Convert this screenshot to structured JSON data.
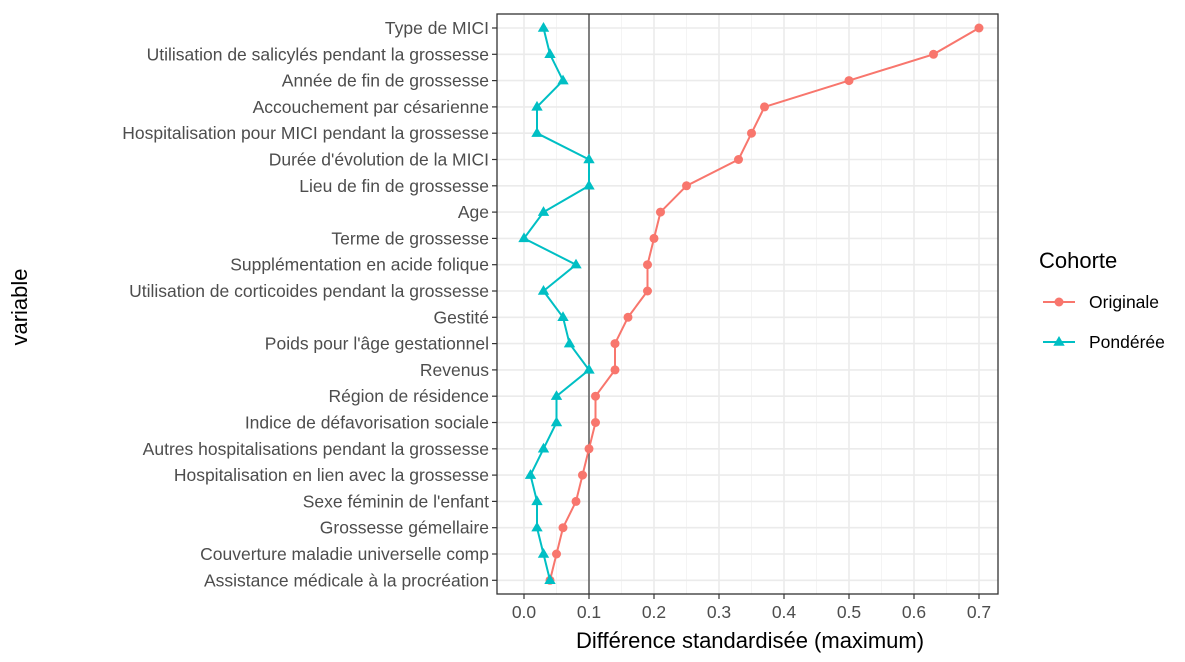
{
  "chart_data": {
    "type": "line",
    "xlabel": "Différence standardisée (maximum)",
    "ylabel": "variable",
    "xlim": [
      -0.04,
      0.73
    ],
    "xticks": [
      0.0,
      0.1,
      0.2,
      0.3,
      0.4,
      0.5,
      0.6,
      0.7
    ],
    "xtick_labels": [
      "0.0",
      "0.1",
      "0.2",
      "0.3",
      "0.4",
      "0.5",
      "0.6",
      "0.7"
    ],
    "reference_line_x": 0.1,
    "grid": true,
    "legend": {
      "title": "Cohorte",
      "position": "right"
    },
    "categories": [
      "Type de MICI",
      "Utilisation de salicylés pendant la grossesse",
      "Année de fin de grossesse",
      "Accouchement par césarienne",
      "Hospitalisation pour MICI pendant la grossesse",
      "Durée d'évolution de la MICI",
      "Lieu de fin de grossesse",
      "Age",
      "Terme de grossesse",
      "Supplémentation en acide folique",
      "Utilisation de corticoides pendant la grossesse",
      "Gestité",
      "Poids pour l'âge gestationnel",
      "Revenus",
      "Région de résidence",
      "Indice de défavorisation sociale",
      "Autres hospitalisations pendant la grossesse",
      "Hospitalisation en lien avec la grossesse",
      "Sexe féminin de l'enfant",
      "Grossesse gémellaire",
      "Couverture maladie universelle comp",
      "Assistance médicale à la procréation"
    ],
    "series": [
      {
        "name": "Originale",
        "color": "#F8766D",
        "marker": "circle",
        "values": [
          0.7,
          0.63,
          0.5,
          0.37,
          0.35,
          0.33,
          0.25,
          0.21,
          0.2,
          0.19,
          0.19,
          0.16,
          0.14,
          0.14,
          0.11,
          0.11,
          0.1,
          0.09,
          0.08,
          0.06,
          0.05,
          0.04
        ]
      },
      {
        "name": "Pondérée",
        "color": "#00BFC4",
        "marker": "triangle",
        "values": [
          0.03,
          0.04,
          0.06,
          0.02,
          0.02,
          0.1,
          0.1,
          0.03,
          0.0,
          0.08,
          0.03,
          0.06,
          0.07,
          0.1,
          0.05,
          0.05,
          0.03,
          0.01,
          0.02,
          0.02,
          0.03,
          0.04
        ]
      }
    ]
  }
}
